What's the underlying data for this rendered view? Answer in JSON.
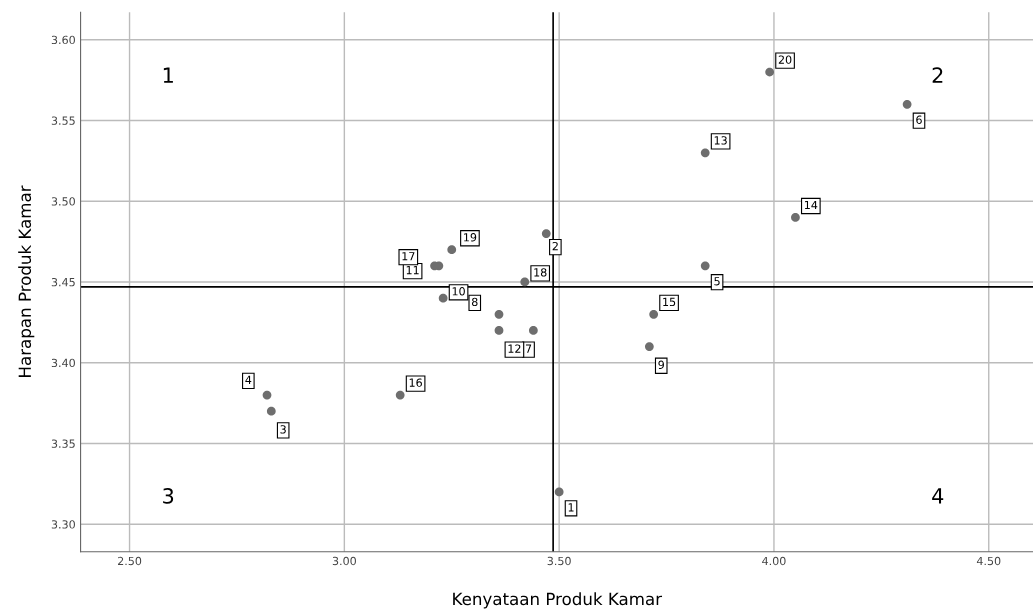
{
  "chart_data": {
    "type": "scatter",
    "xlabel": "Kenyataan Produk Kamar",
    "ylabel": "Harapan Produk Kamar",
    "x": [
      3.5,
      3.47,
      2.83,
      2.82,
      3.84,
      4.31,
      3.44,
      3.36,
      3.71,
      3.23,
      3.22,
      3.36,
      3.84,
      4.05,
      3.72,
      3.13,
      3.21,
      3.42,
      3.25,
      3.99
    ],
    "series": [
      {
        "color": "#6e6e6e",
        "values": [
          3.32,
          3.48,
          3.37,
          3.38,
          3.46,
          3.56,
          3.42,
          3.43,
          3.41,
          3.44,
          3.46,
          3.42,
          3.53,
          3.49,
          3.43,
          3.38,
          3.46,
          3.45,
          3.47,
          3.58
        ]
      }
    ],
    "xlim": [
      2.386,
      4.603
    ],
    "ylim": [
      3.283,
      3.617
    ],
    "xticks": [
      {
        "value": 2.5,
        "label": "2.50"
      },
      {
        "value": 3.0,
        "label": "3.00"
      },
      {
        "value": 3.5,
        "label": "3.50"
      },
      {
        "value": 4.0,
        "label": "4.00"
      },
      {
        "value": 4.5,
        "label": "4.50"
      }
    ],
    "yticks": [
      {
        "value": 3.3,
        "label": "3.30"
      },
      {
        "value": 3.35,
        "label": "3.35"
      },
      {
        "value": 3.4,
        "label": "3.40"
      },
      {
        "value": 3.45,
        "label": "3.45"
      },
      {
        "value": 3.5,
        "label": "3.50"
      },
      {
        "value": 3.55,
        "label": "3.55"
      },
      {
        "value": 3.6,
        "label": "3.60"
      }
    ],
    "ref_lines": [
      {
        "axis": "x",
        "value": 3.486,
        "color": "#000000"
      },
      {
        "axis": "y",
        "value": 3.447,
        "color": "#000000"
      }
    ],
    "grid": true,
    "marker": "circle",
    "annotations": [
      "1",
      "2",
      "3",
      "4",
      {
        "text": "1",
        "x": 3.5,
        "y": 3.32
      },
      {
        "text": "2",
        "x": 3.47,
        "y": 3.48
      },
      {
        "text": "3",
        "x": 2.83,
        "y": 3.37
      },
      {
        "text": "4",
        "x": 2.82,
        "y": 3.38
      },
      {
        "text": "5",
        "x": 3.84,
        "y": 3.46
      },
      {
        "text": "6",
        "x": 4.31,
        "y": 3.56
      },
      {
        "text": "7",
        "x": 3.44,
        "y": 3.42
      },
      {
        "text": "8",
        "x": 3.36,
        "y": 3.43
      },
      {
        "text": "9",
        "x": 3.71,
        "y": 3.41
      },
      {
        "text": "10",
        "x": 3.23,
        "y": 3.44
      },
      {
        "text": "11",
        "x": 3.22,
        "y": 3.46
      },
      {
        "text": "12",
        "x": 3.36,
        "y": 3.42
      },
      {
        "text": "13",
        "x": 3.84,
        "y": 3.53
      },
      {
        "text": "14",
        "x": 4.05,
        "y": 3.49
      },
      {
        "text": "15",
        "x": 3.72,
        "y": 3.43
      },
      {
        "text": "16",
        "x": 3.13,
        "y": 3.38
      },
      {
        "text": "17",
        "x": 3.21,
        "y": 3.46
      },
      {
        "text": "18",
        "x": 3.42,
        "y": 3.45
      },
      {
        "text": "19",
        "x": 3.25,
        "y": 3.47
      },
      {
        "text": "20",
        "x": 3.99,
        "y": 3.58
      }
    ]
  }
}
